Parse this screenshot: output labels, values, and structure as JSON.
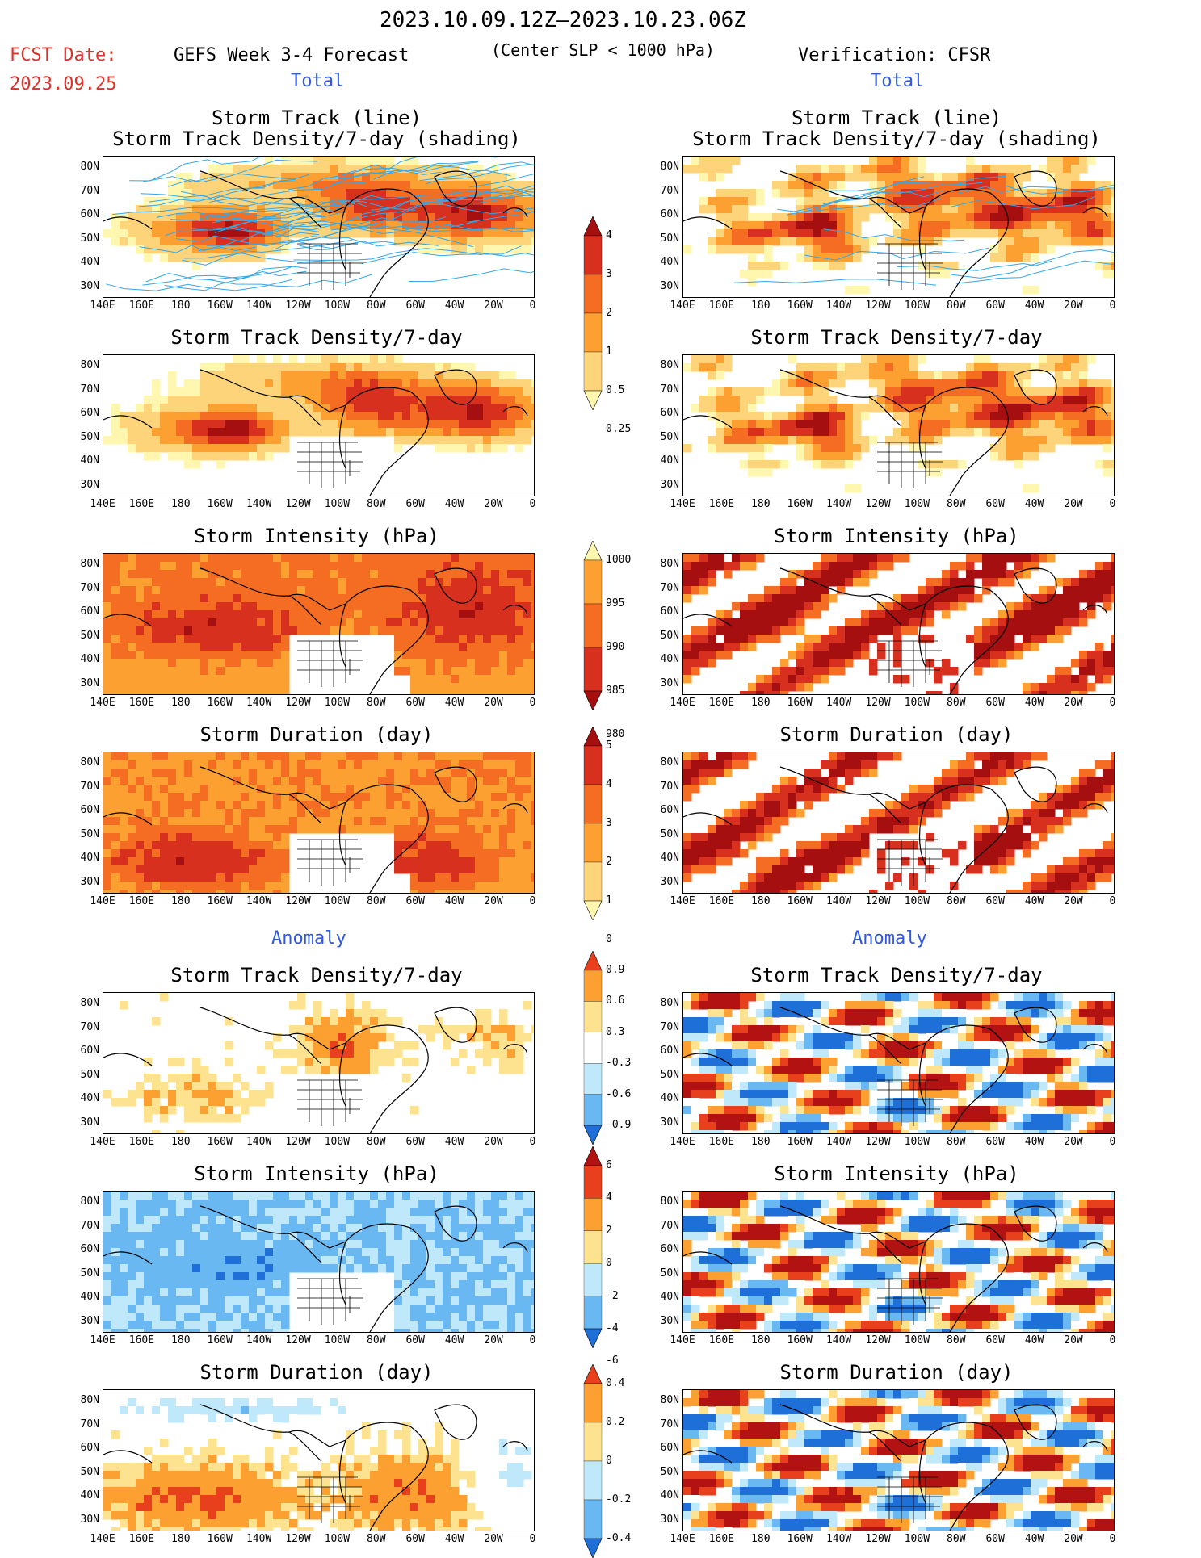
{
  "header": {
    "title": "2023.10.09.12Z–2023.10.23.06Z",
    "fcst_label": "FCST Date:",
    "fcst_date": "2023.09.25",
    "left_title": "GEFS Week 3-4 Forecast",
    "center_note": "(Center SLP < 1000 hPa)",
    "right_title": "Verification: CFSR"
  },
  "sections": {
    "total": "Total",
    "anomaly": "Anomaly"
  },
  "panel_titles": {
    "track_line": "Storm Track (line)",
    "track_shading": "Storm Track Density/7-day (shading)",
    "density": "Storm Track Density/7-day",
    "intensity": "Storm Intensity (hPa)",
    "duration": "Storm Duration (day)"
  },
  "axes": {
    "lat_labels": [
      "80N",
      "70N",
      "60N",
      "50N",
      "40N",
      "30N"
    ],
    "lon_labels": [
      "140E",
      "160E",
      "180",
      "160W",
      "140W",
      "120W",
      "100W",
      "80W",
      "60W",
      "40W",
      "20W",
      "0"
    ]
  },
  "colorbars": {
    "density_total": {
      "labels": [
        "4",
        "3",
        "2",
        "1",
        "0.5",
        "0.25"
      ],
      "colors": [
        "#a50f0f",
        "#d7301f",
        "#f46d22",
        "#fca031",
        "#fdd47a",
        "#fff6b0"
      ]
    },
    "intensity_total": {
      "labels": [
        "1000",
        "995",
        "990",
        "985",
        "980"
      ],
      "colors": [
        "#fff6b0",
        "#fca031",
        "#f46d22",
        "#d7301f",
        "#a50f0f"
      ]
    },
    "duration_total": {
      "labels": [
        "5",
        "4",
        "3",
        "2",
        "1",
        "0"
      ],
      "colors": [
        "#a50f0f",
        "#d7301f",
        "#f46d22",
        "#fca031",
        "#fdd47a",
        "#fff6b0"
      ]
    },
    "density_anom": {
      "labels": [
        "0.9",
        "0.6",
        "0.3",
        "-0.3",
        "-0.6",
        "-0.9"
      ],
      "colors": [
        "#e8401d",
        "#fca031",
        "#fde38f",
        "#ffffff",
        "#bfe8fb",
        "#6ab8f2",
        "#1f6fd8"
      ]
    },
    "intensity_anom": {
      "labels": [
        "6",
        "4",
        "2",
        "0",
        "-2",
        "-4",
        "-6"
      ],
      "colors": [
        "#b31212",
        "#e8401d",
        "#fca031",
        "#fde38f",
        "#bfe8fb",
        "#6ab8f2",
        "#1f6fd8"
      ]
    },
    "duration_anom": {
      "labels": [
        "0.4",
        "0.2",
        "0",
        "-0.2",
        "-0.4"
      ],
      "colors": [
        "#e8401d",
        "#fca031",
        "#fde38f",
        "#bfe8fb",
        "#6ab8f2",
        "#1f6fd8"
      ]
    }
  }
}
